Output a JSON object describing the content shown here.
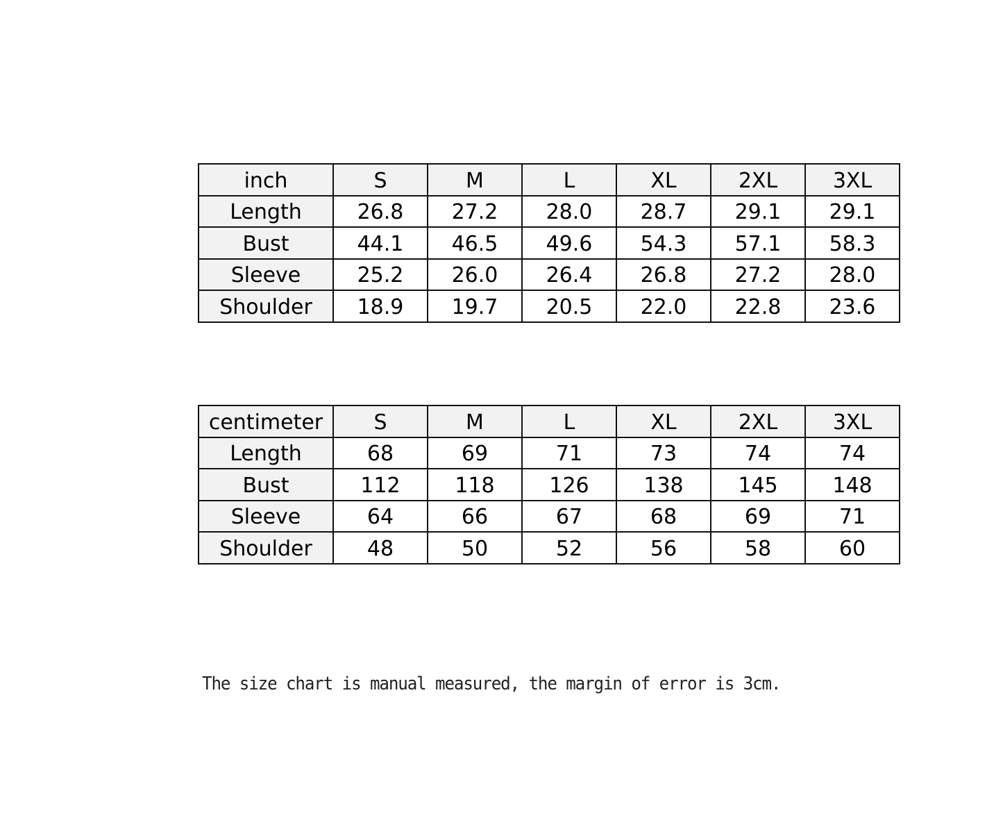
{
  "tables": [
    {
      "unit": "inch",
      "sizes": [
        "S",
        "M",
        "L",
        "XL",
        "2XL",
        "3XL"
      ],
      "rows": [
        {
          "label": "Length",
          "values": [
            "26.8",
            "27.2",
            "28.0",
            "28.7",
            "29.1",
            "29.1"
          ]
        },
        {
          "label": "Bust",
          "values": [
            "44.1",
            "46.5",
            "49.6",
            "54.3",
            "57.1",
            "58.3"
          ]
        },
        {
          "label": "Sleeve",
          "values": [
            "25.2",
            "26.0",
            "26.4",
            "26.8",
            "27.2",
            "28.0"
          ]
        },
        {
          "label": "Shoulder",
          "values": [
            "18.9",
            "19.7",
            "20.5",
            "22.0",
            "22.8",
            "23.6"
          ]
        }
      ]
    },
    {
      "unit": "centimeter",
      "sizes": [
        "S",
        "M",
        "L",
        "XL",
        "2XL",
        "3XL"
      ],
      "rows": [
        {
          "label": "Length",
          "values": [
            "68",
            "69",
            "71",
            "73",
            "74",
            "74"
          ]
        },
        {
          "label": "Bust",
          "values": [
            "112",
            "118",
            "126",
            "138",
            "145",
            "148"
          ]
        },
        {
          "label": "Sleeve",
          "values": [
            "64",
            "66",
            "67",
            "68",
            "69",
            "71"
          ]
        },
        {
          "label": "Shoulder",
          "values": [
            "48",
            "50",
            "52",
            "56",
            "58",
            "60"
          ]
        }
      ]
    }
  ],
  "note": "The size chart is manual measured, the margin of error is 3cm.",
  "colors": {
    "header_bg": "#f2f2f2",
    "border": "#111111"
  }
}
